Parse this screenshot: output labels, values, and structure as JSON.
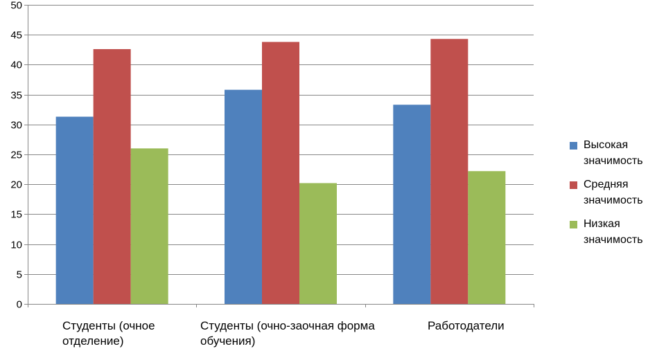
{
  "chart_data": {
    "type": "bar",
    "categories": [
      "Студенты (очное отделение)",
      "Студенты (очно-заочная форма обучения)",
      "Работодатели"
    ],
    "category_lines": [
      [
        "Студенты (очное",
        "отделение)"
      ],
      [
        "Студенты (очно-заочная форма",
        "обучения)"
      ],
      [
        "Работодатели"
      ]
    ],
    "series": [
      {
        "name": "Высокая значимость",
        "name_lines": [
          "Высокая",
          "значимость"
        ],
        "color": "#4F81BD",
        "values": [
          31.3,
          35.8,
          33.3
        ]
      },
      {
        "name": "Средняя значимость",
        "name_lines": [
          "Средняя",
          "значимость"
        ],
        "color": "#C0504D",
        "values": [
          42.6,
          43.8,
          44.3
        ]
      },
      {
        "name": "Низкая значимость",
        "name_lines": [
          "Низкая",
          "значимость"
        ],
        "color": "#9BBB59",
        "values": [
          26.0,
          20.2,
          22.2
        ]
      }
    ],
    "ylim": [
      0,
      50
    ],
    "yticks": [
      0,
      5,
      10,
      15,
      20,
      25,
      30,
      35,
      40,
      45,
      50
    ],
    "grid": true,
    "legend_position": "right",
    "title": "",
    "xlabel": "",
    "ylabel": ""
  }
}
